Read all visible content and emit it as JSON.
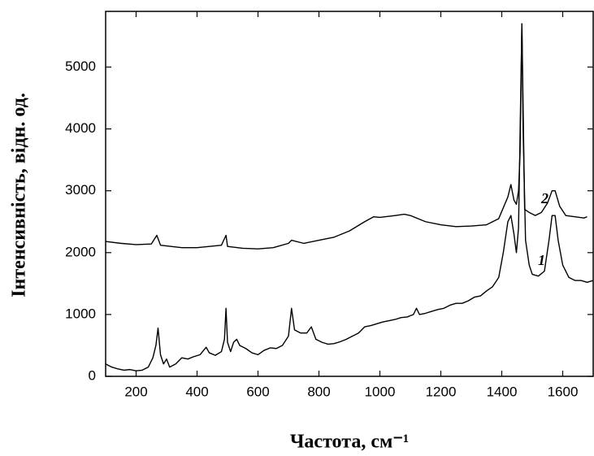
{
  "chart_data": {
    "type": "line",
    "xlabel": "Частота, см⁻¹",
    "ylabel": "Інтенсивність, відн. од.",
    "xlim": [
      100,
      1700
    ],
    "ylim": [
      0,
      5900
    ],
    "xticks": [
      200,
      400,
      600,
      800,
      1000,
      1200,
      1400,
      1600
    ],
    "yticks": [
      0,
      1000,
      2000,
      3000,
      4000,
      5000
    ],
    "series": [
      {
        "name": "1",
        "color": "#000000",
        "x": [
          100,
          120,
          140,
          160,
          180,
          200,
          220,
          240,
          255,
          265,
          272,
          280,
          290,
          300,
          310,
          330,
          350,
          370,
          390,
          410,
          430,
          440,
          460,
          480,
          490,
          495,
          500,
          510,
          520,
          530,
          540,
          560,
          580,
          600,
          620,
          640,
          660,
          680,
          700,
          710,
          720,
          740,
          760,
          775,
          790,
          810,
          830,
          850,
          870,
          890,
          910,
          930,
          950,
          970,
          990,
          1010,
          1030,
          1050,
          1070,
          1090,
          1110,
          1120,
          1130,
          1150,
          1170,
          1190,
          1210,
          1230,
          1250,
          1270,
          1290,
          1310,
          1330,
          1350,
          1370,
          1390,
          1405,
          1420,
          1430,
          1440,
          1448,
          1455,
          1462,
          1466,
          1470,
          1478,
          1490,
          1500,
          1520,
          1540,
          1555,
          1565,
          1575,
          1585,
          1600,
          1620,
          1640,
          1660,
          1680,
          1700
        ],
        "values": [
          200,
          150,
          120,
          100,
          110,
          90,
          100,
          150,
          300,
          500,
          780,
          350,
          200,
          280,
          150,
          200,
          300,
          280,
          320,
          350,
          470,
          380,
          340,
          400,
          600,
          1100,
          550,
          400,
          550,
          600,
          500,
          450,
          380,
          350,
          420,
          460,
          450,
          500,
          650,
          1100,
          750,
          700,
          700,
          800,
          600,
          550,
          520,
          530,
          560,
          600,
          650,
          700,
          800,
          820,
          850,
          880,
          900,
          920,
          950,
          960,
          1000,
          1100,
          1000,
          1020,
          1050,
          1080,
          1100,
          1150,
          1180,
          1180,
          1220,
          1280,
          1300,
          1380,
          1450,
          1600,
          2000,
          2500,
          2600,
          2300,
          2000,
          2400,
          4500,
          5700,
          4000,
          2200,
          1800,
          1650,
          1620,
          1700,
          2200,
          2600,
          2600,
          2200,
          1800,
          1600,
          1550,
          1550,
          1520,
          1550
        ]
      },
      {
        "name": "2",
        "color": "#000000",
        "x": [
          100,
          150,
          200,
          250,
          268,
          280,
          350,
          400,
          440,
          480,
          495,
          500,
          550,
          600,
          650,
          700,
          710,
          750,
          800,
          850,
          900,
          950,
          980,
          1000,
          1050,
          1080,
          1100,
          1150,
          1200,
          1250,
          1300,
          1350,
          1390,
          1420,
          1430,
          1440,
          1448,
          1455,
          1460,
          1466,
          1475,
          1490,
          1510,
          1530,
          1550,
          1565,
          1575,
          1590,
          1610,
          1640,
          1670,
          1680
        ],
        "values": [
          2180,
          2150,
          2130,
          2140,
          2280,
          2120,
          2080,
          2080,
          2100,
          2120,
          2280,
          2100,
          2070,
          2060,
          2080,
          2150,
          2200,
          2150,
          2200,
          2250,
          2350,
          2500,
          2580,
          2570,
          2600,
          2620,
          2600,
          2500,
          2450,
          2420,
          2430,
          2450,
          2550,
          2900,
          3100,
          2850,
          2780,
          3000,
          3600,
          5700,
          2700,
          2650,
          2600,
          2650,
          2800,
          3000,
          3000,
          2750,
          2600,
          2580,
          2560,
          2580
        ]
      }
    ]
  }
}
